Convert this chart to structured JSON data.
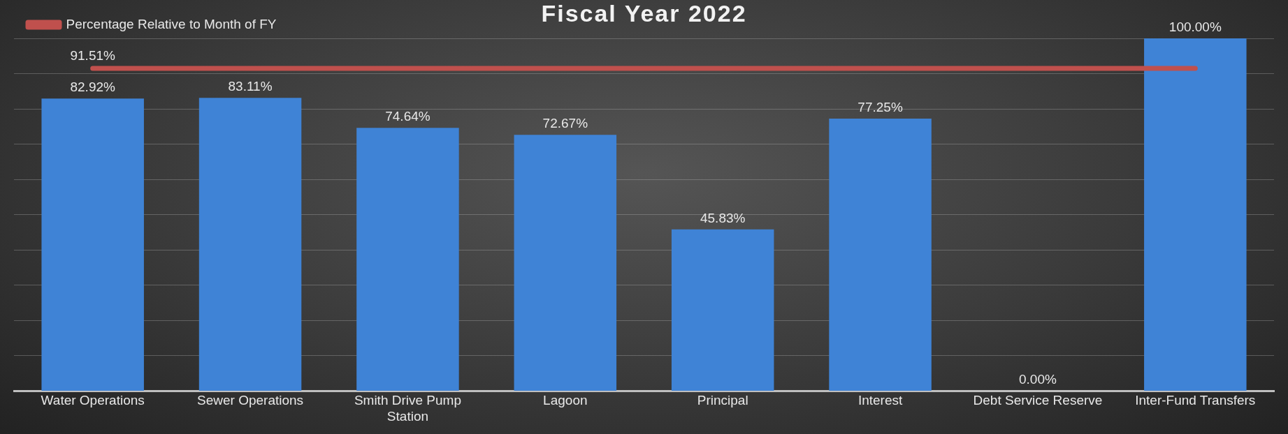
{
  "chart_data": {
    "type": "bar",
    "title": "Fiscal Year 2022",
    "categories": [
      "Water Operations",
      "Sewer Operations",
      "Smith Drive Pump Station",
      "Lagoon",
      "Principal",
      "Interest",
      "Debt Service Reserve",
      "Inter-Fund Transfers"
    ],
    "series": [
      {
        "color": "#3f83d6",
        "values": [
          82.92,
          83.11,
          74.64,
          72.67,
          45.83,
          77.25,
          0,
          100
        ],
        "value_labels": [
          "82.92%",
          "83.11%",
          "74.64%",
          "72.67%",
          "45.83%",
          "77.25%",
          "0.00%",
          "100.00%"
        ]
      },
      {
        "type": "line",
        "name": "Percentage Relative to Month of FY",
        "color": "#c0504d",
        "values": [
          91.51,
          91.51,
          91.51,
          91.51,
          91.51,
          91.51,
          91.51,
          91.51
        ],
        "value_labels": [
          "91.51%",
          null,
          null,
          null,
          null,
          null,
          null,
          null
        ]
      }
    ],
    "ylim": [
      0,
      100
    ],
    "yticks": [
      {
        "value": 0,
        "label": null
      },
      {
        "value": 10,
        "label": null
      },
      {
        "value": 20,
        "label": null
      },
      {
        "value": 30,
        "label": null
      },
      {
        "value": 40,
        "label": null
      },
      {
        "value": 50,
        "label": null
      },
      {
        "value": 60,
        "label": null
      },
      {
        "value": 70,
        "label": null
      },
      {
        "value": 80,
        "label": null
      },
      {
        "value": 90,
        "label": null
      },
      {
        "value": 100,
        "label": null
      }
    ],
    "tick_labels": "x",
    "grid": "y",
    "legend": "top left"
  }
}
